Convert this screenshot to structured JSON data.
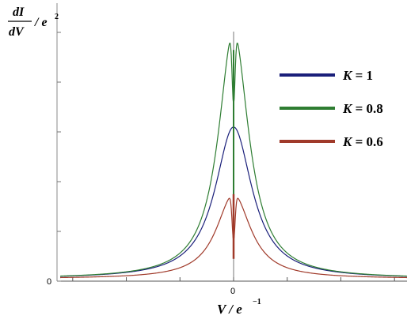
{
  "chart_data": {
    "type": "line",
    "ylabel_num": "dI",
    "ylabel_den": "dV",
    "ylabel_tail": "/ e",
    "ylabel_sup": "2",
    "xlabel_main": "V / e",
    "xlabel_sup": "−1",
    "xtick_label": "0",
    "ytick_label": "0",
    "grid": false,
    "legend_position": "right",
    "x_domain": [
      -10,
      10
    ],
    "y_domain": [
      0,
      1
    ],
    "series": [
      {
        "name": "K = 1",
        "label_main": "K",
        "label_rest": " = 1",
        "color": "#1a1f7a",
        "peak": 0.61,
        "width": 1.3,
        "dip": 0
      },
      {
        "name": "K = 0.8",
        "label_main": "K",
        "label_rest": " = 0.8",
        "color": "#2e7d32",
        "peak": 1.0,
        "width": 1.05,
        "dip": 0.3
      },
      {
        "name": "K = 0.6",
        "label_main": "K",
        "label_rest": " = 0.6",
        "color": "#a03a2a",
        "peak": 0.34,
        "width": 1.2,
        "dip": 0.55
      }
    ]
  }
}
